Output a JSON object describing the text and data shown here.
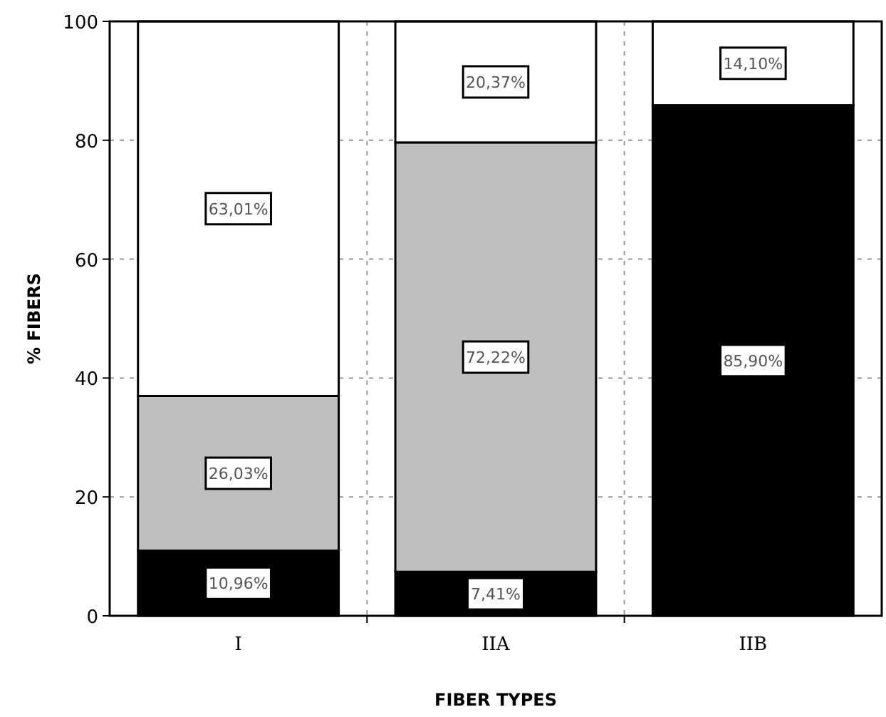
{
  "chart_data": {
    "type": "bar",
    "stacked": true,
    "xlabel": "FIBER TYPES",
    "ylabel": "% FIBERS",
    "categories": [
      "I",
      "IIA",
      "IIB"
    ],
    "ylim": [
      0,
      100
    ],
    "yticks": [
      0,
      20,
      40,
      60,
      80,
      100
    ],
    "grid": true,
    "series": [
      {
        "color": "#000000",
        "values": [
          10.96,
          7.41,
          85.9
        ],
        "value_labels": [
          "10,96%",
          "7,41%",
          "85,90%"
        ]
      },
      {
        "color": "#c0c0c0",
        "values": [
          26.03,
          72.22,
          null
        ],
        "value_labels": [
          "26,03%",
          "72,22%",
          null
        ]
      },
      {
        "color": "#ffffff",
        "values": [
          63.01,
          20.37,
          14.1
        ],
        "value_labels": [
          "63,01%",
          "20,37%",
          "14,10%"
        ]
      }
    ]
  }
}
